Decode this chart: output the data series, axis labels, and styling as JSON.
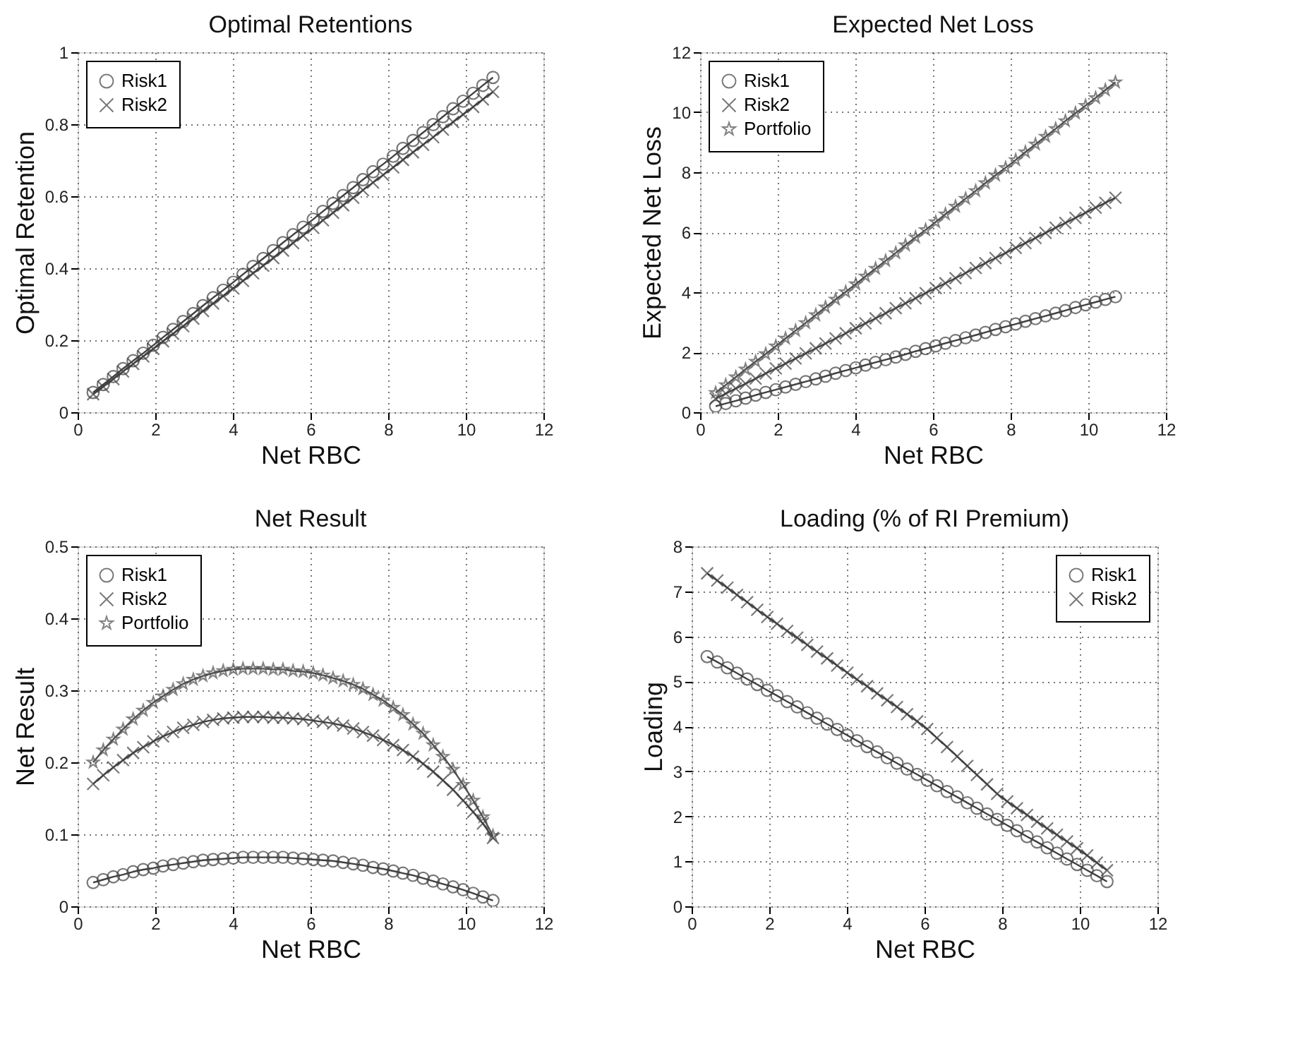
{
  "chart_data": [
    {
      "type": "line",
      "title": "Optimal Retentions",
      "xlabel": "Net RBC",
      "ylabel": "Optimal Retention",
      "xlim": [
        0,
        12
      ],
      "xticks": [
        0,
        2,
        4,
        6,
        8,
        10,
        12
      ],
      "ylim": [
        0,
        1
      ],
      "yticks": [
        0,
        0.2,
        0.4,
        0.6,
        0.8,
        1
      ],
      "grid": true,
      "legend": "top left",
      "line_style": "solid",
      "x": [
        0.4,
        0.66,
        0.92,
        1.17,
        1.43,
        1.69,
        1.95,
        2.2,
        2.46,
        2.72,
        2.98,
        3.23,
        3.49,
        3.75,
        4.01,
        4.26,
        4.52,
        4.78,
        5.04,
        5.29,
        5.55,
        5.81,
        6.07,
        6.32,
        6.58,
        6.84,
        7.1,
        7.35,
        7.61,
        7.87,
        8.13,
        8.38,
        8.64,
        8.9,
        9.16,
        9.41,
        9.67,
        9.93,
        10.19,
        10.44,
        10.7
      ],
      "series": [
        {
          "name": "Risk1",
          "color": "#404040",
          "marker": "circle",
          "values": [
            0.055,
            0.077,
            0.099,
            0.121,
            0.143,
            0.164,
            0.186,
            0.208,
            0.23,
            0.252,
            0.274,
            0.296,
            0.318,
            0.339,
            0.361,
            0.383,
            0.405,
            0.427,
            0.449,
            0.471,
            0.493,
            0.514,
            0.536,
            0.558,
            0.58,
            0.602,
            0.624,
            0.646,
            0.668,
            0.689,
            0.711,
            0.733,
            0.755,
            0.777,
            0.799,
            0.821,
            0.843,
            0.864,
            0.886,
            0.908,
            0.93
          ]
        },
        {
          "name": "Risk2",
          "color": "#404040",
          "marker": "cross",
          "values": [
            0.05,
            0.071,
            0.092,
            0.113,
            0.134,
            0.155,
            0.176,
            0.197,
            0.218,
            0.239,
            0.26,
            0.281,
            0.302,
            0.323,
            0.344,
            0.365,
            0.386,
            0.407,
            0.428,
            0.449,
            0.47,
            0.491,
            0.512,
            0.533,
            0.554,
            0.575,
            0.596,
            0.617,
            0.638,
            0.659,
            0.68,
            0.701,
            0.722,
            0.743,
            0.764,
            0.785,
            0.806,
            0.827,
            0.848,
            0.869,
            0.89
          ]
        }
      ]
    },
    {
      "type": "line",
      "title": "Expected Net Loss",
      "xlabel": "Net RBC",
      "ylabel": "Expected Net Loss",
      "xlim": [
        0,
        12
      ],
      "xticks": [
        0,
        2,
        4,
        6,
        8,
        10,
        12
      ],
      "ylim": [
        0,
        12
      ],
      "yticks": [
        0,
        2,
        4,
        6,
        8,
        10,
        12
      ],
      "grid": true,
      "legend": "top left",
      "line_style": "solid",
      "x": [
        0.4,
        0.66,
        0.92,
        1.17,
        1.43,
        1.69,
        1.95,
        2.2,
        2.46,
        2.72,
        2.98,
        3.23,
        3.49,
        3.75,
        4.01,
        4.26,
        4.52,
        4.78,
        5.04,
        5.29,
        5.55,
        5.81,
        6.07,
        6.32,
        6.58,
        6.84,
        7.1,
        7.35,
        7.61,
        7.87,
        8.13,
        8.38,
        8.64,
        8.9,
        9.16,
        9.41,
        9.67,
        9.93,
        10.19,
        10.44,
        10.7
      ],
      "series": [
        {
          "name": "Risk1",
          "color": "#404040",
          "marker": "circle",
          "values": [
            0.2,
            0.29,
            0.38,
            0.47,
            0.57,
            0.66,
            0.75,
            0.84,
            0.93,
            1.02,
            1.11,
            1.2,
            1.3,
            1.39,
            1.48,
            1.57,
            1.66,
            1.75,
            1.84,
            1.93,
            2.03,
            2.12,
            2.21,
            2.3,
            2.39,
            2.48,
            2.57,
            2.66,
            2.76,
            2.85,
            2.94,
            3.03,
            3.12,
            3.21,
            3.3,
            3.39,
            3.49,
            3.58,
            3.67,
            3.76,
            3.85
          ]
        },
        {
          "name": "Risk2",
          "color": "#404040",
          "marker": "cross",
          "values": [
            0.45,
            0.62,
            0.79,
            0.95,
            1.12,
            1.29,
            1.46,
            1.62,
            1.79,
            1.96,
            2.13,
            2.29,
            2.46,
            2.63,
            2.8,
            2.96,
            3.13,
            3.3,
            3.47,
            3.63,
            3.8,
            3.97,
            4.14,
            4.3,
            4.47,
            4.64,
            4.81,
            4.97,
            5.14,
            5.31,
            5.48,
            5.64,
            5.81,
            5.98,
            6.15,
            6.31,
            6.48,
            6.65,
            6.82,
            6.98,
            7.15
          ]
        },
        {
          "name": "Portfolio",
          "color": "#505050",
          "marker": "star",
          "values": [
            0.65,
            0.91,
            1.17,
            1.43,
            1.69,
            1.94,
            2.2,
            2.46,
            2.72,
            2.98,
            3.24,
            3.5,
            3.76,
            4.01,
            4.27,
            4.53,
            4.79,
            5.05,
            5.31,
            5.57,
            5.83,
            6.08,
            6.34,
            6.6,
            6.86,
            7.12,
            7.38,
            7.64,
            7.9,
            8.15,
            8.41,
            8.67,
            8.93,
            9.19,
            9.45,
            9.71,
            9.97,
            10.22,
            10.48,
            10.74,
            11.0
          ]
        }
      ]
    },
    {
      "type": "line",
      "title": "Net Result",
      "xlabel": "Net RBC",
      "ylabel": "Net Result",
      "xlim": [
        0,
        12
      ],
      "xticks": [
        0,
        2,
        4,
        6,
        8,
        10,
        12
      ],
      "ylim": [
        0,
        0.5
      ],
      "yticks": [
        0,
        0.1,
        0.2,
        0.3,
        0.4,
        0.5
      ],
      "grid": true,
      "legend": "top left",
      "line_style": "solid",
      "x": [
        0.4,
        0.66,
        0.92,
        1.17,
        1.43,
        1.69,
        1.95,
        2.2,
        2.46,
        2.72,
        2.98,
        3.23,
        3.49,
        3.75,
        4.01,
        4.26,
        4.52,
        4.78,
        5.04,
        5.29,
        5.55,
        5.81,
        6.07,
        6.32,
        6.58,
        6.84,
        7.1,
        7.35,
        7.61,
        7.87,
        8.13,
        8.38,
        8.64,
        8.9,
        9.16,
        9.41,
        9.67,
        9.93,
        10.19,
        10.44,
        10.7
      ],
      "series": [
        {
          "name": "Risk1",
          "color": "#404040",
          "marker": "circle",
          "values": [
            0.033,
            0.037,
            0.041,
            0.044,
            0.048,
            0.051,
            0.053,
            0.056,
            0.058,
            0.06,
            0.062,
            0.064,
            0.065,
            0.066,
            0.067,
            0.068,
            0.068,
            0.068,
            0.068,
            0.068,
            0.067,
            0.066,
            0.065,
            0.064,
            0.063,
            0.061,
            0.059,
            0.057,
            0.054,
            0.052,
            0.049,
            0.046,
            0.043,
            0.039,
            0.035,
            0.031,
            0.027,
            0.023,
            0.018,
            0.013,
            0.008
          ]
        },
        {
          "name": "Risk2",
          "color": "#404040",
          "marker": "cross",
          "values": [
            0.17,
            0.182,
            0.193,
            0.203,
            0.213,
            0.221,
            0.229,
            0.236,
            0.242,
            0.248,
            0.252,
            0.256,
            0.259,
            0.261,
            0.262,
            0.263,
            0.263,
            0.263,
            0.262,
            0.262,
            0.261,
            0.26,
            0.258,
            0.256,
            0.254,
            0.251,
            0.247,
            0.242,
            0.237,
            0.231,
            0.224,
            0.217,
            0.208,
            0.198,
            0.187,
            0.175,
            0.162,
            0.147,
            0.131,
            0.115,
            0.095
          ]
        },
        {
          "name": "Portfolio",
          "color": "#505050",
          "marker": "star",
          "values": [
            0.2,
            0.217,
            0.232,
            0.246,
            0.26,
            0.272,
            0.283,
            0.292,
            0.301,
            0.309,
            0.315,
            0.32,
            0.324,
            0.327,
            0.329,
            0.33,
            0.33,
            0.33,
            0.329,
            0.329,
            0.327,
            0.326,
            0.324,
            0.321,
            0.317,
            0.313,
            0.308,
            0.302,
            0.294,
            0.286,
            0.276,
            0.266,
            0.253,
            0.24,
            0.224,
            0.208,
            0.19,
            0.169,
            0.147,
            0.124,
            0.098
          ]
        }
      ]
    },
    {
      "type": "line",
      "title": "Loading (% of RI Premium)",
      "xlabel": "Net RBC",
      "ylabel": "Loading",
      "xlim": [
        0,
        12
      ],
      "xticks": [
        0,
        2,
        4,
        6,
        8,
        10,
        12
      ],
      "ylim": [
        0,
        8
      ],
      "yticks": [
        0,
        1,
        2,
        3,
        4,
        5,
        6,
        7,
        8
      ],
      "grid": true,
      "legend": "top right",
      "line_style": "solid",
      "x": [
        0.4,
        0.66,
        0.92,
        1.17,
        1.43,
        1.69,
        1.95,
        2.2,
        2.46,
        2.72,
        2.98,
        3.23,
        3.49,
        3.75,
        4.01,
        4.26,
        4.52,
        4.78,
        5.04,
        5.29,
        5.55,
        5.81,
        6.07,
        6.32,
        6.58,
        6.84,
        7.1,
        7.35,
        7.61,
        7.87,
        8.13,
        8.38,
        8.64,
        8.9,
        9.16,
        9.41,
        9.67,
        9.93,
        10.19,
        10.44,
        10.7
      ],
      "series": [
        {
          "name": "Risk1",
          "color": "#404040",
          "marker": "circle",
          "values": [
            5.55,
            5.43,
            5.3,
            5.18,
            5.05,
            4.93,
            4.8,
            4.68,
            4.55,
            4.43,
            4.3,
            4.18,
            4.05,
            3.93,
            3.8,
            3.68,
            3.55,
            3.43,
            3.3,
            3.18,
            3.05,
            2.93,
            2.8,
            2.68,
            2.55,
            2.43,
            2.3,
            2.18,
            2.05,
            1.93,
            1.8,
            1.68,
            1.55,
            1.43,
            1.3,
            1.18,
            1.05,
            0.93,
            0.8,
            0.68,
            0.55
          ]
        },
        {
          "name": "Risk2",
          "color": "#404040",
          "marker": "cross",
          "values": [
            7.4,
            7.24,
            7.08,
            6.92,
            6.76,
            6.59,
            6.43,
            6.28,
            6.12,
            5.97,
            5.81,
            5.66,
            5.51,
            5.35,
            5.19,
            5.04,
            4.89,
            4.73,
            4.58,
            4.43,
            4.27,
            4.11,
            3.94,
            3.74,
            3.54,
            3.33,
            3.12,
            2.92,
            2.71,
            2.5,
            2.33,
            2.18,
            2.03,
            1.88,
            1.73,
            1.59,
            1.44,
            1.29,
            1.13,
            0.97,
            0.8
          ]
        }
      ]
    }
  ]
}
